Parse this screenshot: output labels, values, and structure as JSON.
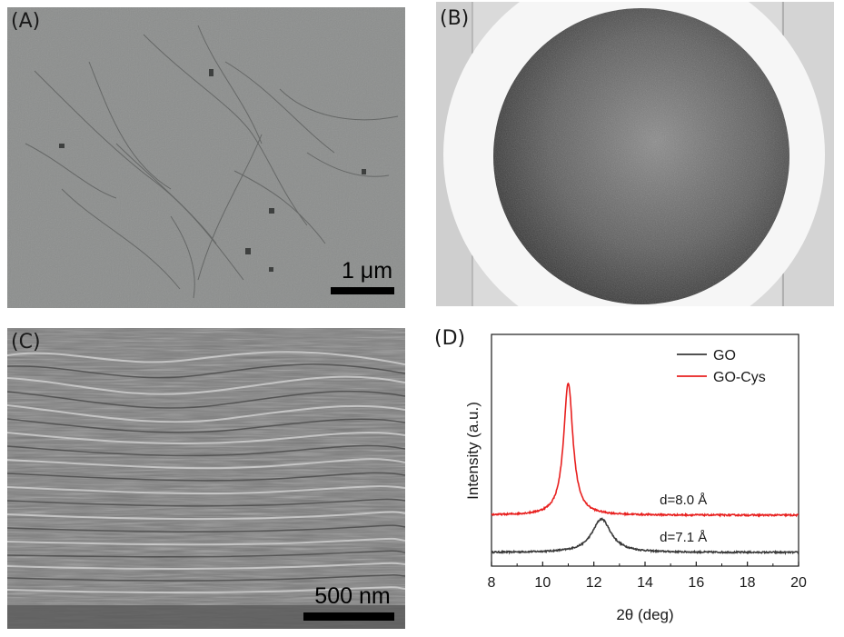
{
  "panel_a": {
    "label": "(A)",
    "scale_bar": "1 μm"
  },
  "panel_b": {
    "label": "(B)"
  },
  "panel_c": {
    "label": "(C)",
    "scale_bar": "500 nm"
  },
  "panel_d": {
    "label": "(D)"
  },
  "chart_data": {
    "type": "line",
    "xlabel": "2θ (deg)",
    "ylabel": "Intensity (a.u.)",
    "xlim": [
      8,
      20
    ],
    "xticks": [
      8,
      10,
      12,
      14,
      16,
      18,
      20
    ],
    "grid": false,
    "legend_position": "top-right",
    "series": [
      {
        "name": "GO",
        "color": "#3a3a3a",
        "baseline": 0.0,
        "peak_x": 12.3,
        "peak_height": 0.9,
        "peak_width": 0.45
      },
      {
        "name": "GO-Cys",
        "color": "#e8201f",
        "baseline": 1.0,
        "peak_x": 11.0,
        "peak_height": 3.55,
        "peak_width": 0.22
      }
    ],
    "annotations": [
      {
        "text": "d=8.0 Å",
        "x": 15.5,
        "series": "GO-Cys"
      },
      {
        "text": "d=7.1 Å",
        "x": 15.5,
        "series": "GO"
      }
    ]
  }
}
